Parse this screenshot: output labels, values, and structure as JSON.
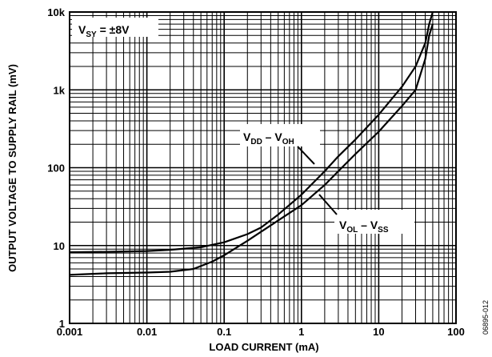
{
  "chart_data": {
    "type": "line",
    "xscale": "log",
    "yscale": "log",
    "xlabel": "LOAD CURRENT (mA)",
    "ylabel": "OUTPUT VOLTAGE TO SUPPLY RAIL (mV)",
    "xlim": [
      0.001,
      100
    ],
    "ylim": [
      1,
      10000
    ],
    "xticks": [
      "0.001",
      "0.01",
      "0.1",
      "1",
      "10",
      "100"
    ],
    "yticks": [
      "1",
      "10",
      "100",
      "1k",
      "10k"
    ],
    "grid": true,
    "condition_label": {
      "main": "V",
      "sub": "SY",
      "rest": " = ±8V"
    },
    "figure_id": "06895-012",
    "series": [
      {
        "label_main_a": "V",
        "label_sub_a": "DD",
        "label_mid": " – ",
        "label_main_b": "V",
        "label_sub_b": "OH",
        "points": [
          [
            0.001,
            8.2
          ],
          [
            0.003,
            8.3
          ],
          [
            0.01,
            8.5
          ],
          [
            0.02,
            8.8
          ],
          [
            0.05,
            9.5
          ],
          [
            0.1,
            11
          ],
          [
            0.2,
            14
          ],
          [
            0.3,
            17
          ],
          [
            0.5,
            25
          ],
          [
            1,
            45
          ],
          [
            2,
            90
          ],
          [
            3,
            140
          ],
          [
            5,
            230
          ],
          [
            10,
            480
          ],
          [
            20,
            1100
          ],
          [
            30,
            2000
          ],
          [
            40,
            4000
          ],
          [
            45,
            7000
          ],
          [
            50,
            10000
          ]
        ]
      },
      {
        "label_main_a": "V",
        "label_sub_a": "OL",
        "label_mid": " – ",
        "label_main_b": "V",
        "label_sub_b": "SS",
        "points": [
          [
            0.001,
            4.2
          ],
          [
            0.003,
            4.4
          ],
          [
            0.01,
            4.5
          ],
          [
            0.02,
            4.6
          ],
          [
            0.04,
            5
          ],
          [
            0.07,
            6.2
          ],
          [
            0.1,
            7.5
          ],
          [
            0.2,
            11.5
          ],
          [
            0.3,
            15
          ],
          [
            0.5,
            21
          ],
          [
            1,
            33
          ],
          [
            2,
            60
          ],
          [
            3,
            90
          ],
          [
            5,
            150
          ],
          [
            10,
            290
          ],
          [
            20,
            620
          ],
          [
            30,
            1000
          ],
          [
            40,
            2500
          ],
          [
            45,
            5000
          ],
          [
            50,
            7000
          ]
        ]
      }
    ]
  }
}
